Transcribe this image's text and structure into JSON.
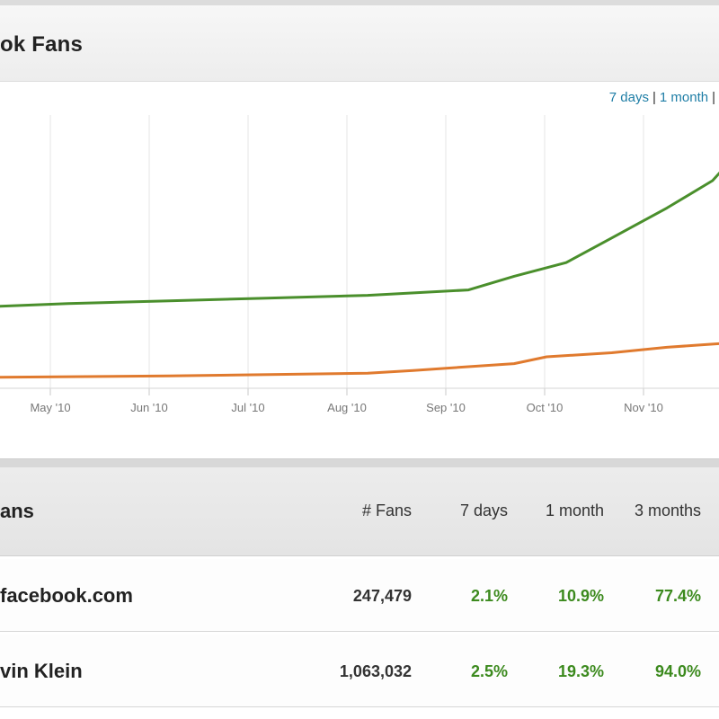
{
  "header": {
    "title": "ok Fans"
  },
  "range_links": [
    "7 days",
    "1 month",
    ""
  ],
  "chart_data": {
    "type": "line",
    "title": "",
    "xlabel": "",
    "ylabel": "",
    "x_tick_labels": [
      "May '10",
      "Jun '10",
      "Jul '10",
      "Aug '10",
      "Sep '10",
      "Oct '10",
      "Nov '10"
    ],
    "series": [
      {
        "name": "",
        "color": "#4a8f2c",
        "values": [
          [
            "2010-04-10",
            0.3
          ],
          [
            "2010-05-01",
            0.31
          ],
          [
            "2010-06-01",
            0.32
          ],
          [
            "2010-07-01",
            0.33
          ],
          [
            "2010-08-01",
            0.34
          ],
          [
            "2010-09-01",
            0.36
          ],
          [
            "2010-09-15",
            0.41
          ],
          [
            "2010-10-01",
            0.46
          ],
          [
            "2010-10-15",
            0.55
          ],
          [
            "2010-11-01",
            0.66
          ],
          [
            "2010-11-15",
            0.76
          ],
          [
            "2010-12-01",
            0.97
          ]
        ]
      },
      {
        "name": "",
        "color": "#e07a2e",
        "values": [
          [
            "2010-04-10",
            0.04
          ],
          [
            "2010-06-01",
            0.045
          ],
          [
            "2010-08-01",
            0.055
          ],
          [
            "2010-08-15",
            0.065
          ],
          [
            "2010-09-15",
            0.09
          ],
          [
            "2010-09-25",
            0.115
          ],
          [
            "2010-10-15",
            0.13
          ],
          [
            "2010-11-01",
            0.15
          ],
          [
            "2010-12-01",
            0.175
          ]
        ]
      }
    ],
    "grid": true,
    "legend": "none"
  },
  "table": {
    "title": "ans",
    "headers": [
      "# Fans",
      "7 days",
      "1 month",
      "3 months"
    ],
    "rows": [
      {
        "name": "facebook.com",
        "fans": "247,479",
        "d7": "2.1%",
        "m1": "10.9%",
        "m3": "77.4%"
      },
      {
        "name": "vin Klein",
        "fans": "1,063,032",
        "d7": "2.5%",
        "m1": "19.3%",
        "m3": "94.0%"
      }
    ]
  }
}
